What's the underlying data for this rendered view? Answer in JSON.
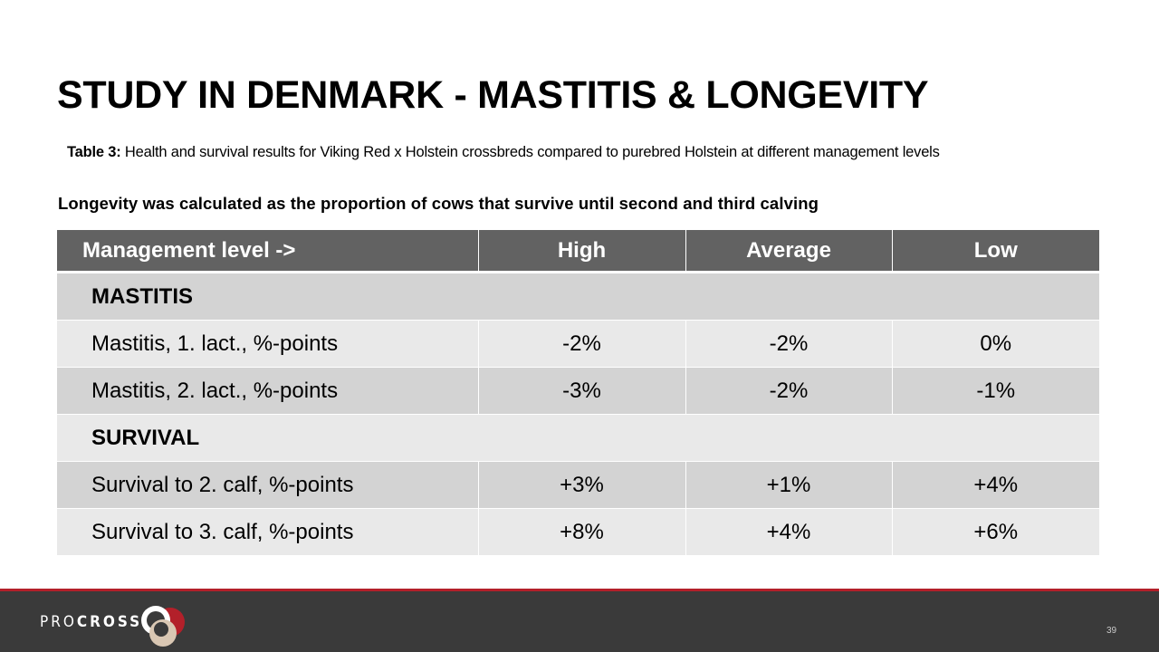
{
  "slide": {
    "title": "STUDY IN DENMARK - MASTITIS & LONGEVITY",
    "caption_label": "Table 3:",
    "caption_text": " Health and survival results for Viking Red x Holstein crossbreds compared to purebred Holstein at different management levels",
    "subheading": "Longevity was calculated as the proportion of cows that survive until second and third calving",
    "page_number": "39"
  },
  "table": {
    "headers": [
      "Management level ->",
      "High",
      "Average",
      "Low"
    ],
    "rows": [
      {
        "type": "section",
        "label": "MASTITIS"
      },
      {
        "type": "data",
        "label": "Mastitis, 1. lact., %-points",
        "values": [
          "-2%",
          "-2%",
          "0%"
        ]
      },
      {
        "type": "data",
        "label": "Mastitis, 2. lact., %-points",
        "values": [
          "-3%",
          "-2%",
          "-1%"
        ]
      },
      {
        "type": "section",
        "label": "SURVIVAL"
      },
      {
        "type": "data",
        "label": "Survival to 2. calf, %-points",
        "values": [
          "+3%",
          "+1%",
          "+4%"
        ]
      },
      {
        "type": "data",
        "label": "Survival to 3. calf, %-points",
        "values": [
          "+8%",
          "+4%",
          "+6%"
        ]
      }
    ]
  },
  "footer": {
    "brand_pro": "PRO",
    "brand_cross": "CROSS",
    "logo_icon": "procross-logo-icon",
    "colors": {
      "accent": "#b3202a",
      "bar": "#3a3a3a",
      "header": "#626262"
    }
  }
}
